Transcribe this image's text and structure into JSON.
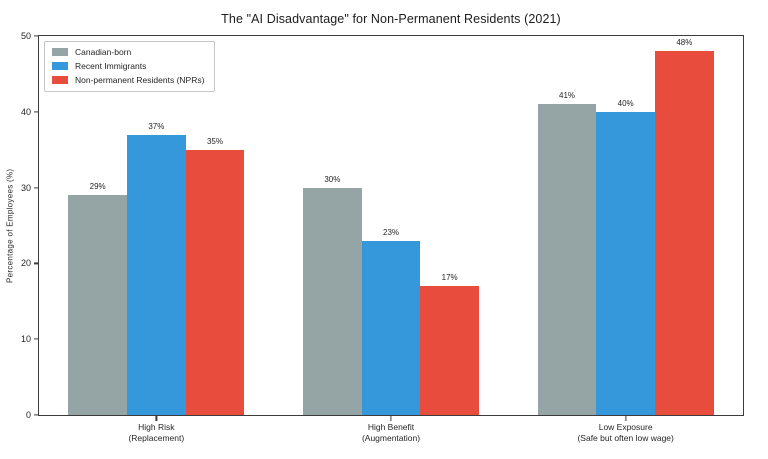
{
  "chart_data": {
    "type": "bar",
    "title": "The \"AI Disadvantage\" for Non-Permanent Residents (2021)",
    "categories": [
      "High Risk\n(Replacement)",
      "High Benefit\n(Augmentation)",
      "Low Exposure\n(Safe but often low wage)"
    ],
    "series": [
      {
        "name": "Canadian-born",
        "color": "#95a5a6",
        "values": [
          29,
          30,
          41
        ]
      },
      {
        "name": "Recent Immigrants",
        "color": "#3498db",
        "values": [
          37,
          23,
          40
        ]
      },
      {
        "name": "Non-permanent Residents (NPRs)",
        "color": "#e74c3c",
        "values": [
          35,
          17,
          48
        ]
      }
    ],
    "value_label_suffix": "%",
    "xlabel": "",
    "ylabel": "Percentage of Employees (%)",
    "ylim": [
      0,
      50
    ],
    "yticks": [
      0,
      10,
      20,
      30,
      40,
      50
    ],
    "bar_width_fraction": 0.0833333,
    "grid": false,
    "legend_position": "upper-left"
  }
}
